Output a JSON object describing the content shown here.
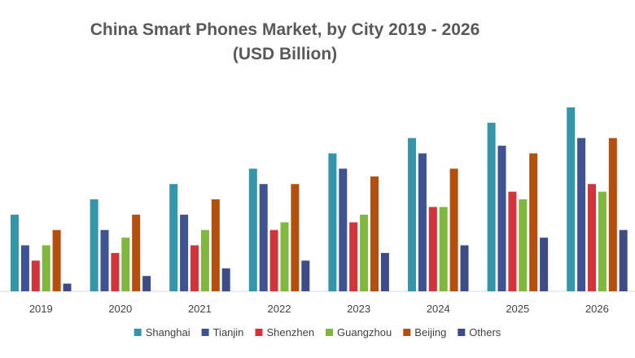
{
  "chart_data": {
    "type": "bar",
    "title": "China Smart Phones Market, by City 2019 - 2026",
    "subtitle": "(USD Billion)",
    "xlabel": "",
    "ylabel": "",
    "categories": [
      "2019",
      "2020",
      "2021",
      "2022",
      "2023",
      "2024",
      "2025",
      "2026"
    ],
    "ylim": [
      0,
      24
    ],
    "grid": false,
    "legend_position": "bottom",
    "series": [
      {
        "name": "Shanghai",
        "color": "#3596aa",
        "values": [
          10,
          12,
          14,
          16,
          18,
          20,
          22,
          24
        ]
      },
      {
        "name": "Tianjin",
        "color": "#3f5291",
        "values": [
          6,
          8,
          10,
          14,
          16,
          18,
          19,
          20
        ]
      },
      {
        "name": "Shenzhen",
        "color": "#d1343a",
        "values": [
          4,
          5,
          6,
          8,
          9,
          11,
          13,
          14
        ]
      },
      {
        "name": "Guangzhou",
        "color": "#80b73f",
        "values": [
          6,
          7,
          8,
          9,
          10,
          11,
          12,
          13
        ]
      },
      {
        "name": "Beijing",
        "color": "#b3500f",
        "values": [
          8,
          10,
          12,
          14,
          15,
          16,
          18,
          20
        ]
      },
      {
        "name": "Others",
        "color": "#3d4c86",
        "values": [
          1,
          2,
          3,
          4,
          5,
          6,
          7,
          8
        ]
      }
    ]
  }
}
